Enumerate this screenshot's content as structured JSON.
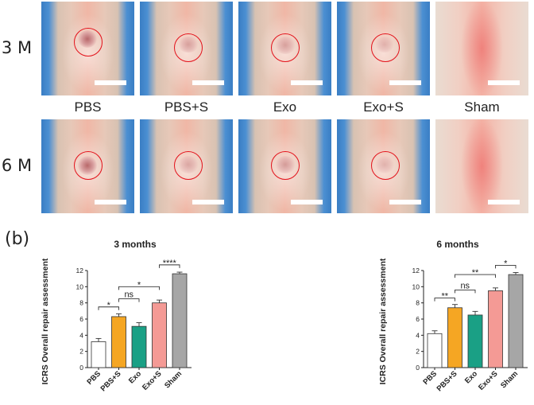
{
  "figure": {
    "rows": [
      {
        "label": "3 M",
        "key": "r1"
      },
      {
        "label": "6 M",
        "key": "r2"
      }
    ],
    "groups": [
      "PBS",
      "PBS+S",
      "Exo",
      "Exo+S",
      "Sham"
    ],
    "panel_b_letter": "(b)"
  },
  "chart_data": [
    {
      "type": "bar",
      "title": "3 months",
      "ylabel": "ICRS Overall repair assessment",
      "categories": [
        "PBS",
        "PBS+S",
        "Exo",
        "Exo+S",
        "Sham"
      ],
      "values": [
        3.2,
        6.3,
        5.1,
        8.0,
        11.6
      ],
      "errors": [
        0.4,
        0.35,
        0.45,
        0.35,
        0.2
      ],
      "colors": [
        "#ffffff",
        "#f5a623",
        "#1aa085",
        "#f49a95",
        "#a6a6a6"
      ],
      "ylim": [
        0,
        12
      ],
      "yticks": [
        0,
        2,
        4,
        6,
        8,
        10,
        12
      ],
      "significance": [
        {
          "from": 0,
          "to": 1,
          "label": "*"
        },
        {
          "from": 1,
          "to": 2,
          "label": "ns"
        },
        {
          "from": 1,
          "to": 3,
          "label": "*"
        },
        {
          "from": 3,
          "to": 4,
          "label": "****"
        }
      ]
    },
    {
      "type": "bar",
      "title": "6 months",
      "ylabel": "ICRS Overall repair assessment",
      "categories": [
        "PBS",
        "PBS+S",
        "Exo",
        "Exo+S",
        "Sham"
      ],
      "values": [
        4.2,
        7.4,
        6.5,
        9.5,
        11.5
      ],
      "errors": [
        0.35,
        0.4,
        0.45,
        0.35,
        0.25
      ],
      "colors": [
        "#ffffff",
        "#f5a623",
        "#1aa085",
        "#f49a95",
        "#a6a6a6"
      ],
      "ylim": [
        0,
        12
      ],
      "yticks": [
        0,
        2,
        4,
        6,
        8,
        10,
        12
      ],
      "significance": [
        {
          "from": 0,
          "to": 1,
          "label": "**"
        },
        {
          "from": 1,
          "to": 2,
          "label": "ns"
        },
        {
          "from": 1,
          "to": 3,
          "label": "**"
        },
        {
          "from": 3,
          "to": 4,
          "label": "*"
        }
      ]
    }
  ]
}
